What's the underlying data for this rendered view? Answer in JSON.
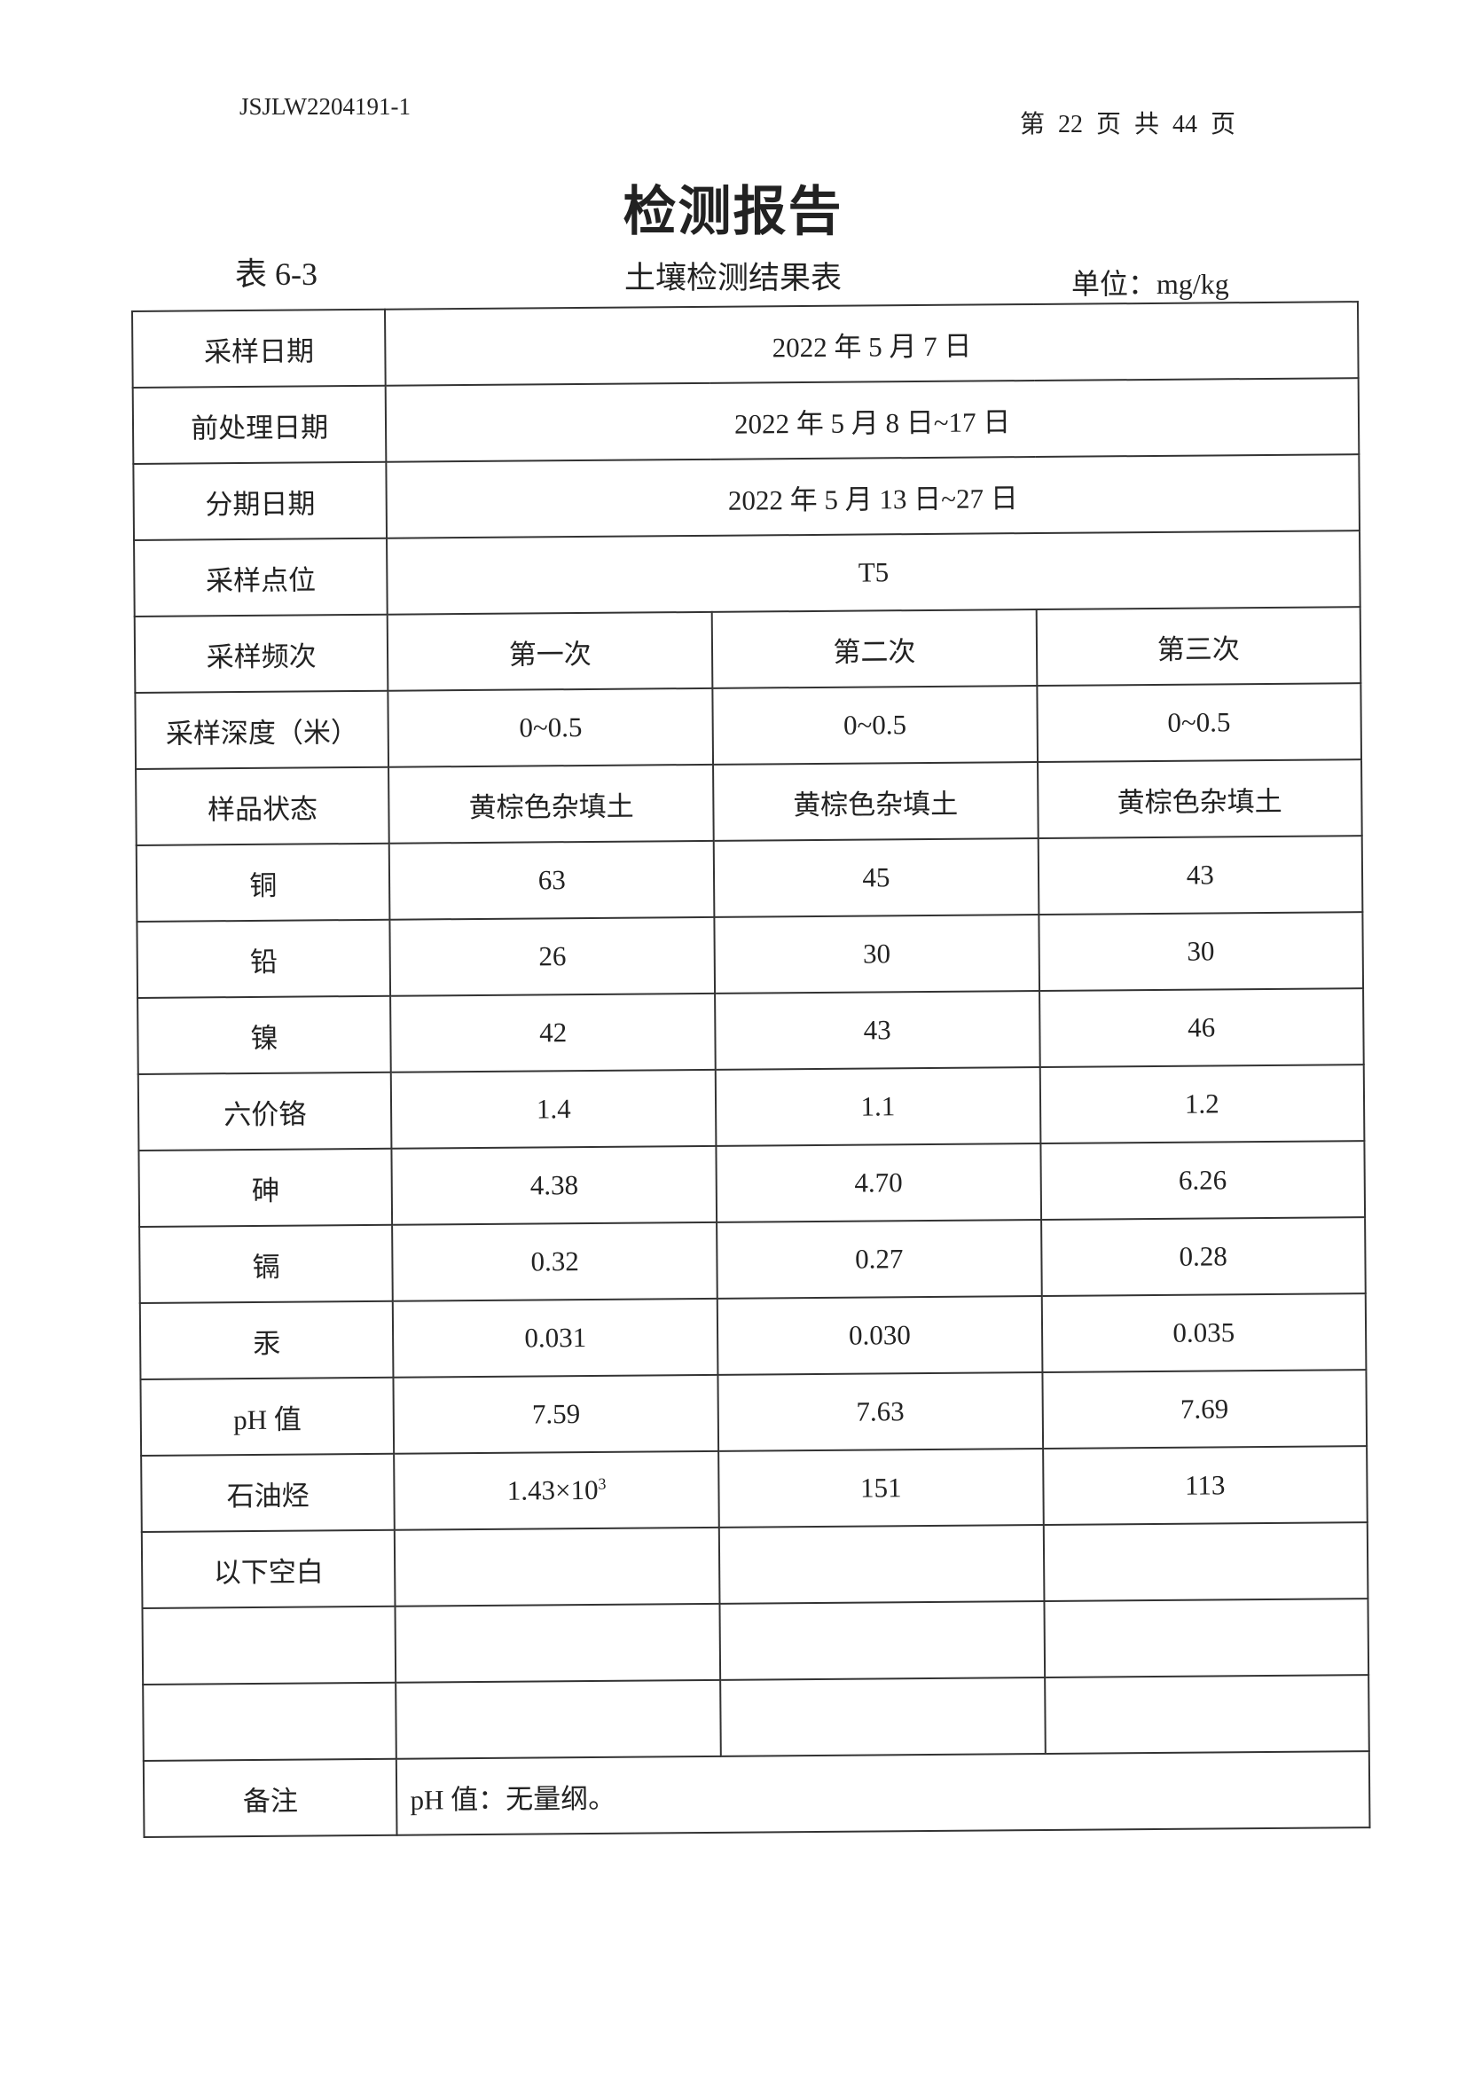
{
  "header": {
    "doc_number": "JSJLW2204191-1",
    "page_info": "第 22 页 共 44 页"
  },
  "title": "检测报告",
  "table_number": "表 6-3",
  "table_title": "土壤检测结果表",
  "unit": "单位：mg/kg",
  "info_rows": [
    {
      "label": "采样日期",
      "value": "2022 年 5 月 7 日"
    },
    {
      "label": "前处理日期",
      "value": "2022 年 5 月 8 日~17 日"
    },
    {
      "label": "分期日期",
      "value": "2022 年 5 月 13 日~27 日"
    },
    {
      "label": "采样点位",
      "value": "T5"
    }
  ],
  "data_rows": [
    {
      "label": "采样频次",
      "values": [
        "第一次",
        "第二次",
        "第三次"
      ]
    },
    {
      "label": "采样深度（米）",
      "values": [
        "0~0.5",
        "0~0.5",
        "0~0.5"
      ]
    },
    {
      "label": "样品状态",
      "values": [
        "黄棕色杂填土",
        "黄棕色杂填土",
        "黄棕色杂填土"
      ]
    },
    {
      "label": "铜",
      "values": [
        "63",
        "45",
        "43"
      ]
    },
    {
      "label": "铅",
      "values": [
        "26",
        "30",
        "30"
      ]
    },
    {
      "label": "镍",
      "values": [
        "42",
        "43",
        "46"
      ]
    },
    {
      "label": "六价铬",
      "values": [
        "1.4",
        "1.1",
        "1.2"
      ]
    },
    {
      "label": "砷",
      "values": [
        "4.38",
        "4.70",
        "6.26"
      ]
    },
    {
      "label": "镉",
      "values": [
        "0.32",
        "0.27",
        "0.28"
      ]
    },
    {
      "label": "汞",
      "values": [
        "0.031",
        "0.030",
        "0.035"
      ]
    },
    {
      "label": "pH 值",
      "values": [
        "7.59",
        "7.63",
        "7.69"
      ]
    },
    {
      "label": "石油烃",
      "values": [
        "1.43×10",
        "151",
        "113"
      ],
      "first_exponent": "3"
    },
    {
      "label": "以下空白",
      "values": [
        "",
        "",
        ""
      ]
    },
    {
      "label": "",
      "values": [
        "",
        "",
        ""
      ]
    },
    {
      "label": "",
      "values": [
        "",
        "",
        ""
      ]
    }
  ],
  "remark": {
    "label": "备注",
    "value": "pH 值：无量纲。"
  }
}
